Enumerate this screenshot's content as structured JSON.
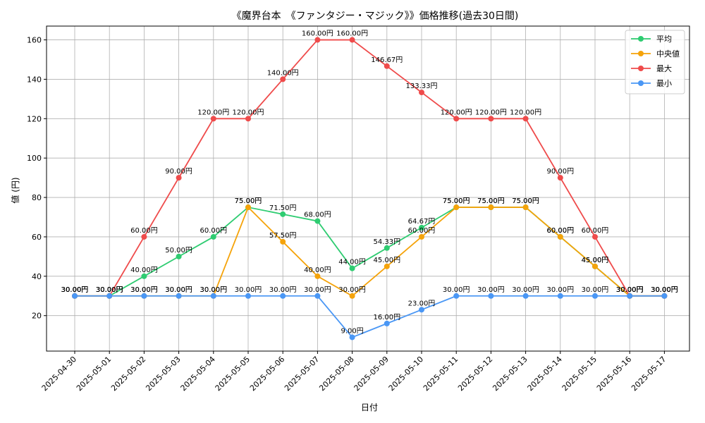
{
  "chart_data": {
    "type": "line",
    "title": "《魔界台本　《ファンタジー・マジック》》価格推移(過去30日間)",
    "xlabel": "日付",
    "ylabel": "値 (円)",
    "x": [
      "2025-04-30",
      "2025-05-01",
      "2025-05-02",
      "2025-05-03",
      "2025-05-04",
      "2025-05-05",
      "2025-05-06",
      "2025-05-07",
      "2025-05-08",
      "2025-05-09",
      "2025-05-10",
      "2025-05-11",
      "2025-05-12",
      "2025-05-13",
      "2025-05-14",
      "2025-05-15",
      "2025-05-16",
      "2025-05-17"
    ],
    "ylim": [
      2,
      167
    ],
    "yticks": [
      20,
      40,
      60,
      80,
      100,
      120,
      140,
      160
    ],
    "value_suffix": "円",
    "grid": true,
    "legend_position": "top-right",
    "series": [
      {
        "name": "平均",
        "color": "#2ecc71",
        "values": [
          30,
          30,
          40,
          50,
          60,
          75,
          71.5,
          68,
          44,
          54.33,
          64.67,
          75,
          75,
          75,
          60,
          45,
          30,
          30
        ]
      },
      {
        "name": "中央値",
        "color": "#f5a30a",
        "values": [
          30,
          30,
          30,
          30,
          30,
          75,
          57.5,
          40,
          30,
          45,
          60,
          75,
          75,
          75,
          60,
          45,
          30,
          30
        ]
      },
      {
        "name": "最大",
        "color": "#ef4b4b",
        "values": [
          30,
          30,
          60,
          90,
          120,
          120,
          140,
          160,
          160,
          146.67,
          133.33,
          120,
          120,
          120,
          90,
          60,
          30,
          30
        ]
      },
      {
        "name": "最小",
        "color": "#4a97f5",
        "values": [
          30,
          30,
          30,
          30,
          30,
          30,
          30,
          30,
          9,
          16,
          23,
          30,
          30,
          30,
          30,
          30,
          30,
          30
        ]
      }
    ]
  }
}
